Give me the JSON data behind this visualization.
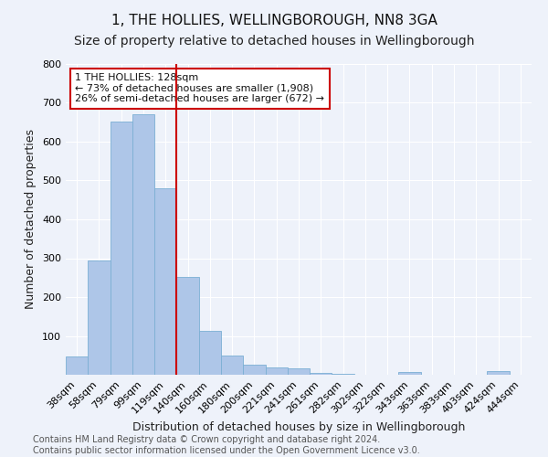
{
  "title": "1, THE HOLLIES, WELLINGBOROUGH, NN8 3GA",
  "subtitle": "Size of property relative to detached houses in Wellingborough",
  "xlabel": "Distribution of detached houses by size in Wellingborough",
  "ylabel": "Number of detached properties",
  "categories": [
    "38sqm",
    "58sqm",
    "79sqm",
    "99sqm",
    "119sqm",
    "140sqm",
    "160sqm",
    "180sqm",
    "200sqm",
    "221sqm",
    "241sqm",
    "261sqm",
    "282sqm",
    "302sqm",
    "322sqm",
    "343sqm",
    "363sqm",
    "383sqm",
    "403sqm",
    "424sqm",
    "444sqm"
  ],
  "values": [
    47,
    294,
    651,
    670,
    480,
    252,
    113,
    50,
    27,
    18,
    17,
    5,
    2,
    0,
    0,
    8,
    0,
    0,
    0,
    9,
    0
  ],
  "bar_color": "#aec6e8",
  "bar_edge_color": "#7bafd4",
  "vline_color": "#cc0000",
  "annotation_text": "1 THE HOLLIES: 128sqm\n← 73% of detached houses are smaller (1,908)\n26% of semi-detached houses are larger (672) →",
  "annotation_box_color": "#ffffff",
  "annotation_box_edge_color": "#cc0000",
  "ylim": [
    0,
    800
  ],
  "yticks": [
    0,
    100,
    200,
    300,
    400,
    500,
    600,
    700,
    800
  ],
  "footer_text": "Contains HM Land Registry data © Crown copyright and database right 2024.\nContains public sector information licensed under the Open Government Licence v3.0.",
  "background_color": "#eef2fa",
  "grid_color": "#ffffff",
  "title_fontsize": 11,
  "subtitle_fontsize": 10,
  "axis_label_fontsize": 9,
  "tick_fontsize": 8,
  "annotation_fontsize": 8,
  "footer_fontsize": 7
}
